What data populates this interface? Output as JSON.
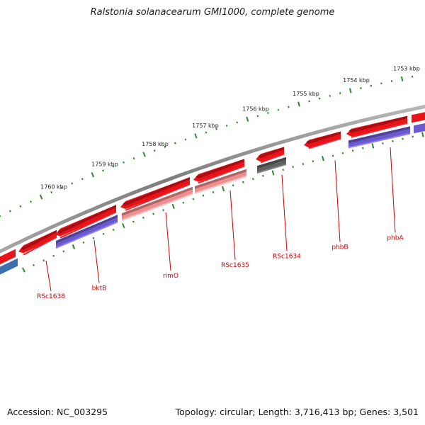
{
  "title": "Ralstonia solanacearum GMI1000, complete genome",
  "footer": {
    "accession": "Accession: NC_003295",
    "topology": "Topology: circular; Length: 3,716,413 bp; Genes: 3,501"
  },
  "colors": {
    "backbone": "#8a8a8a",
    "ticks": "#2a8a2a",
    "gene_red": "#e8141a",
    "gene_pink": "#ef8e8e",
    "gene_purple": "#6a5acd",
    "gene_blue": "#3d6fae",
    "gene_gray": "#606060",
    "label": "#cc0000"
  },
  "scale": {
    "unit": "kbp",
    "labels": [
      "1760 kbp",
      "1759 kbp",
      "1758 kbp",
      "1757 kbp",
      "1756 kbp",
      "1755 kbp",
      "1754 kbp",
      "1753 kbp"
    ]
  },
  "genes": [
    {
      "label": "RSc1638",
      "track": "outer",
      "color": "gene_red"
    },
    {
      "label": "bktB",
      "track": "outer",
      "color": "gene_red"
    },
    {
      "label": "",
      "track": "inner",
      "color": "gene_purple"
    },
    {
      "label": "rimO",
      "track": "outer",
      "color": "gene_red"
    },
    {
      "label": "",
      "track": "inner",
      "color": "gene_pink"
    },
    {
      "label": "RSc1635",
      "track": "outer",
      "color": "gene_red"
    },
    {
      "label": "",
      "track": "inner",
      "color": "gene_pink"
    },
    {
      "label": "RSc1634",
      "track": "outer",
      "color": "gene_red"
    },
    {
      "label": "",
      "track": "inner",
      "color": "gene_gray"
    },
    {
      "label": "phbB",
      "track": "outer",
      "color": "gene_red"
    },
    {
      "label": "phbA",
      "track": "outer",
      "color": "gene_red"
    },
    {
      "label": "",
      "track": "inner",
      "color": "gene_purple"
    }
  ]
}
